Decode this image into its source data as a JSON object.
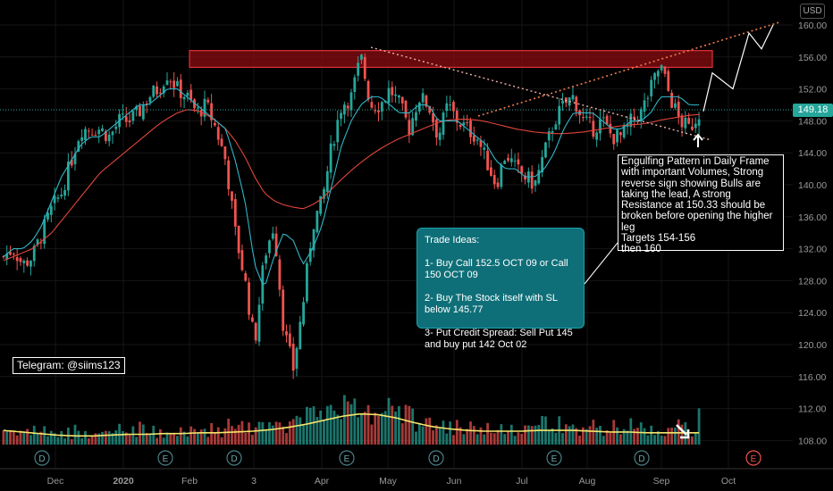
{
  "currency": "USD",
  "last_price": "149.18",
  "y_ticks": [
    "160.00",
    "156.00",
    "152.00",
    "148.00",
    "144.00",
    "140.00",
    "136.00",
    "132.00",
    "128.00",
    "124.00",
    "120.00",
    "116.00",
    "112.00",
    "108.00"
  ],
  "x_ticks": [
    "Dec",
    "2020",
    "Feb",
    "3",
    "Apr",
    "May",
    "Jun",
    "Jul",
    "Aug",
    "Sep",
    "Oct"
  ],
  "event_markers": [
    "D",
    "E",
    "D",
    "E",
    "D",
    "E",
    "D",
    "E"
  ],
  "telegram": "Telegram: @siims123",
  "trade_ideas": "Trade Ideas:\n\n1- Buy Call 152.5 OCT 09 or Call 150 OCT 09\n\n2- Buy The Stock itself with SL below 145.77\n\n3- Put Credit Spread: Sell Put 145 and buy put 142 Oct 02",
  "analysis": "Engulfing Pattern in Daily Frame with important Volumes, Strong reverse sign showing Bulls are taking the lead, A strong Resistance at 150.33 should be broken before opening the higher leg\nTargets 154-156\nthen 160",
  "colors": {
    "up": "#26a69a",
    "down": "#ef5350",
    "ma_fast": "#2fb6c9",
    "ma_slow": "#e2453c",
    "vol_ma": "#f5e66b",
    "resistance": "#8b0d12"
  },
  "chart_data": {
    "type": "candlestick",
    "ylim": [
      104.5,
      162.5
    ],
    "resistance_zone": [
      154.7,
      156.8
    ],
    "price_path": [
      131,
      132,
      130,
      131,
      134,
      137,
      139,
      143,
      147,
      147,
      147,
      146,
      148,
      148,
      149,
      151,
      152,
      154,
      152,
      151,
      149,
      150,
      147,
      143,
      134,
      128,
      120,
      131,
      135,
      122,
      117,
      125,
      135,
      138,
      145,
      150,
      151,
      156,
      150,
      150,
      152,
      150,
      147,
      151,
      150,
      146,
      150,
      148,
      147,
      146,
      143,
      140,
      144,
      142,
      141,
      140,
      144,
      148,
      150,
      151,
      148,
      147,
      148,
      146,
      146,
      148,
      149,
      152,
      155,
      151,
      148,
      147,
      149
    ],
    "fast_ma_path": [
      131,
      132,
      132,
      133,
      135,
      138,
      141,
      143,
      145,
      146,
      146,
      147,
      148,
      149,
      150,
      150,
      151,
      152,
      152,
      151,
      150,
      149,
      148,
      147,
      143,
      138,
      130,
      127,
      131,
      134,
      133,
      130,
      132,
      135,
      140,
      145,
      148,
      150,
      151,
      151,
      150,
      149,
      149,
      150,
      150,
      148,
      148,
      148,
      147,
      146,
      145,
      143,
      142,
      142,
      141,
      141,
      142,
      144,
      147,
      149,
      149,
      149,
      148,
      147,
      147,
      148,
      148,
      149,
      151,
      151,
      151,
      150,
      150
    ],
    "slow_ma_path": [
      130.5,
      131,
      131.5,
      132,
      133,
      134,
      135.5,
      137,
      138.5,
      140,
      141.5,
      142.5,
      143.5,
      144.5,
      145.5,
      146.5,
      147.5,
      148.3,
      149,
      149.4,
      149.3,
      148.8,
      148,
      147,
      145.5,
      143.5,
      141,
      139,
      138,
      137.5,
      137.2,
      137,
      137.5,
      138.3,
      139.5,
      140.7,
      141.8,
      142.8,
      143.7,
      144.5,
      145.2,
      145.8,
      146.3,
      146.8,
      147.3,
      147.8,
      148.1,
      148.2,
      148.2,
      148.1,
      147.9,
      147.6,
      147.3,
      147,
      146.8,
      146.6,
      146.5,
      146.4,
      146.4,
      146.5,
      146.6,
      146.8,
      147,
      147.2,
      147.4,
      147.5,
      147.6,
      147.8,
      148.1,
      148.3,
      148.5,
      148.7,
      148.8
    ],
    "volume_ma_path": [
      0.18,
      0.16,
      0.14,
      0.12,
      0.11,
      0.11,
      0.12,
      0.13,
      0.13,
      0.14,
      0.14,
      0.15,
      0.15,
      0.16,
      0.17,
      0.19,
      0.22,
      0.26,
      0.31,
      0.36,
      0.39,
      0.38,
      0.34,
      0.28,
      0.23,
      0.2,
      0.18,
      0.17,
      0.17,
      0.17,
      0.18,
      0.18,
      0.18,
      0.17,
      0.16,
      0.16,
      0.15,
      0.15,
      0.15,
      0.15
    ],
    "projection_path": [
      149.18,
      154,
      152,
      159,
      157,
      160
    ]
  }
}
